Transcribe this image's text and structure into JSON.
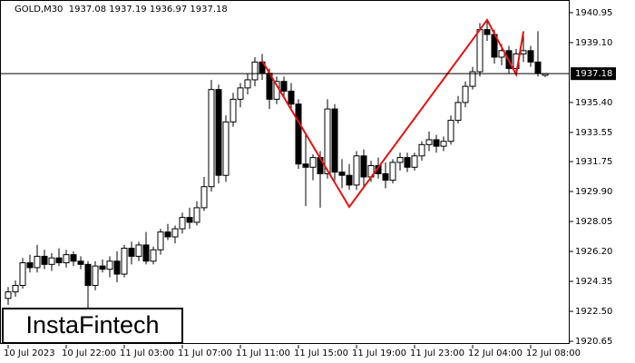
{
  "chart_data": {
    "type": "candlestick",
    "header": "GOLD,M30  1937.08 1937.19 1936.97 1937.18",
    "logo": "InstaFintech",
    "categories": [
      "10 Jul 2023",
      null,
      null,
      null,
      null,
      null,
      null,
      null,
      "10 Jul 22:00",
      null,
      null,
      null,
      null,
      null,
      null,
      null,
      "11 Jul 03:00",
      null,
      null,
      null,
      null,
      null,
      null,
      null,
      "11 Jul 07:00",
      null,
      null,
      null,
      null,
      null,
      null,
      null,
      "11 Jul 11:00",
      null,
      null,
      null,
      null,
      null,
      null,
      null,
      "11 Jul 15:00",
      null,
      null,
      null,
      null,
      null,
      null,
      null,
      "11 Jul 19:00",
      null,
      null,
      null,
      null,
      null,
      null,
      null,
      "11 Jul 23:00",
      null,
      null,
      null,
      null,
      null,
      null,
      null,
      "12 Jul 04:00",
      null,
      null,
      null,
      null,
      null,
      null,
      null,
      "12 Jul 08:00",
      null,
      null
    ],
    "open": [
      1923.3,
      1923.7,
      1924.1,
      1925.5,
      1925.2,
      1925.9,
      1925.4,
      1925.8,
      1925.5,
      1926.0,
      1925.6,
      1925.4,
      1924.1,
      1925.3,
      1925.1,
      1925.6,
      1924.8,
      1926.4,
      1925.9,
      1926.6,
      1925.6,
      1926.3,
      1927.4,
      1927.1,
      1927.6,
      1928.3,
      1928.0,
      1928.9,
      1930.2,
      1936.2,
      1930.9,
      1934.2,
      1935.6,
      1936.3,
      1936.8,
      1937.9,
      1937.2,
      1935.6,
      1936.7,
      1936.1,
      1935.3,
      1931.6,
      1931.4,
      1932.0,
      1931.0,
      1935.0,
      1931.1,
      1930.9,
      1930.3,
      1932.1,
      1930.8,
      1931.5,
      1931.0,
      1930.6,
      1931.7,
      1932.0,
      1931.4,
      1932.1,
      1932.8,
      1933.1,
      1932.7,
      1933.0,
      1934.3,
      1935.4,
      1936.4,
      1937.3,
      1939.9,
      1939.6,
      1938.2,
      1938.6,
      1937.5,
      1938.4,
      1938.6,
      1937.9,
      1937.08
    ],
    "high": [
      1924.0,
      1924.4,
      1925.8,
      1926.0,
      1926.6,
      1926.3,
      1926.1,
      1926.4,
      1926.3,
      1926.2,
      1925.9,
      1925.6,
      1925.6,
      1925.7,
      1925.9,
      1926.2,
      1926.6,
      1926.8,
      1926.8,
      1927.4,
      1926.5,
      1927.6,
      1927.9,
      1927.8,
      1928.6,
      1928.9,
      1929.3,
      1930.8,
      1936.8,
      1936.5,
      1934.6,
      1936.0,
      1936.6,
      1937.2,
      1938.2,
      1938.4,
      1937.5,
      1937.0,
      1937.0,
      1936.6,
      1935.6,
      1933.4,
      1932.2,
      1932.4,
      1935.6,
      1935.3,
      1931.9,
      1931.6,
      1932.4,
      1932.5,
      1931.8,
      1932.0,
      1931.7,
      1931.9,
      1932.3,
      1932.3,
      1932.3,
      1933.0,
      1933.6,
      1933.4,
      1933.3,
      1934.6,
      1935.8,
      1936.7,
      1937.6,
      1940.3,
      1940.5,
      1939.9,
      1939.0,
      1938.9,
      1938.7,
      1939.8,
      1938.9,
      1939.8,
      1937.19
    ],
    "low": [
      1922.9,
      1923.4,
      1923.9,
      1924.9,
      1924.9,
      1925.1,
      1925.0,
      1925.3,
      1925.2,
      1925.3,
      1925.1,
      1921.3,
      1923.8,
      1924.9,
      1924.6,
      1924.3,
      1924.6,
      1925.4,
      1925.6,
      1925.4,
      1925.4,
      1926.0,
      1926.9,
      1926.7,
      1927.3,
      1927.6,
      1927.8,
      1928.7,
      1929.9,
      1930.4,
      1930.5,
      1933.9,
      1935.1,
      1935.9,
      1936.4,
      1936.8,
      1935.0,
      1935.3,
      1935.8,
      1934.9,
      1931.3,
      1929.0,
      1930.6,
      1928.9,
      1930.7,
      1930.6,
      1930.1,
      1930.0,
      1930.0,
      1930.2,
      1930.5,
      1930.7,
      1930.1,
      1930.4,
      1931.2,
      1931.1,
      1931.2,
      1931.8,
      1932.4,
      1932.3,
      1932.4,
      1932.8,
      1934.1,
      1935.1,
      1936.2,
      1937.0,
      1939.2,
      1937.8,
      1937.7,
      1937.2,
      1937.2,
      1937.9,
      1937.6,
      1937.0,
      1936.97
    ],
    "close": [
      1923.7,
      1924.1,
      1925.5,
      1925.2,
      1925.9,
      1925.4,
      1925.8,
      1925.5,
      1926.0,
      1925.6,
      1925.4,
      1924.1,
      1925.3,
      1925.1,
      1925.6,
      1924.8,
      1926.4,
      1925.9,
      1926.6,
      1925.6,
      1926.3,
      1927.4,
      1927.1,
      1927.6,
      1928.3,
      1928.0,
      1928.9,
      1930.2,
      1936.2,
      1930.9,
      1934.2,
      1935.6,
      1936.3,
      1936.8,
      1937.9,
      1937.2,
      1935.6,
      1936.7,
      1936.1,
      1935.3,
      1931.6,
      1931.4,
      1932.0,
      1931.0,
      1935.0,
      1931.1,
      1930.9,
      1930.3,
      1932.1,
      1930.8,
      1931.5,
      1931.0,
      1930.6,
      1931.7,
      1932.0,
      1931.4,
      1932.1,
      1932.8,
      1933.1,
      1932.7,
      1933.0,
      1934.3,
      1935.4,
      1936.4,
      1937.3,
      1939.9,
      1939.6,
      1938.2,
      1938.6,
      1937.5,
      1938.4,
      1938.6,
      1937.9,
      1937.2,
      1937.18
    ],
    "pattern": {
      "color": "#e81010",
      "index": [
        35,
        47,
        66,
        70,
        71
      ],
      "price": [
        1937.97,
        1928.95,
        1940.5,
        1937.13,
        1939.77
      ]
    },
    "last_price": {
      "value": 1937.18,
      "label": "1937.18"
    },
    "ylim": [
      1920.43,
      1941.73
    ],
    "yticks": [
      {
        "value": 1940.95,
        "label": "1940.95"
      },
      {
        "value": 1939.1,
        "label": "1939.10"
      },
      {
        "value": 1935.4,
        "label": "1935.40"
      },
      1933.55,
      1931.75,
      {
        "value": 1929.9,
        "label": "1929.90"
      },
      1928.05,
      {
        "value": 1926.2,
        "label": "1926.20"
      },
      1924.35,
      {
        "value": 1922.5,
        "label": "1922.50"
      },
      1920.65
    ]
  }
}
